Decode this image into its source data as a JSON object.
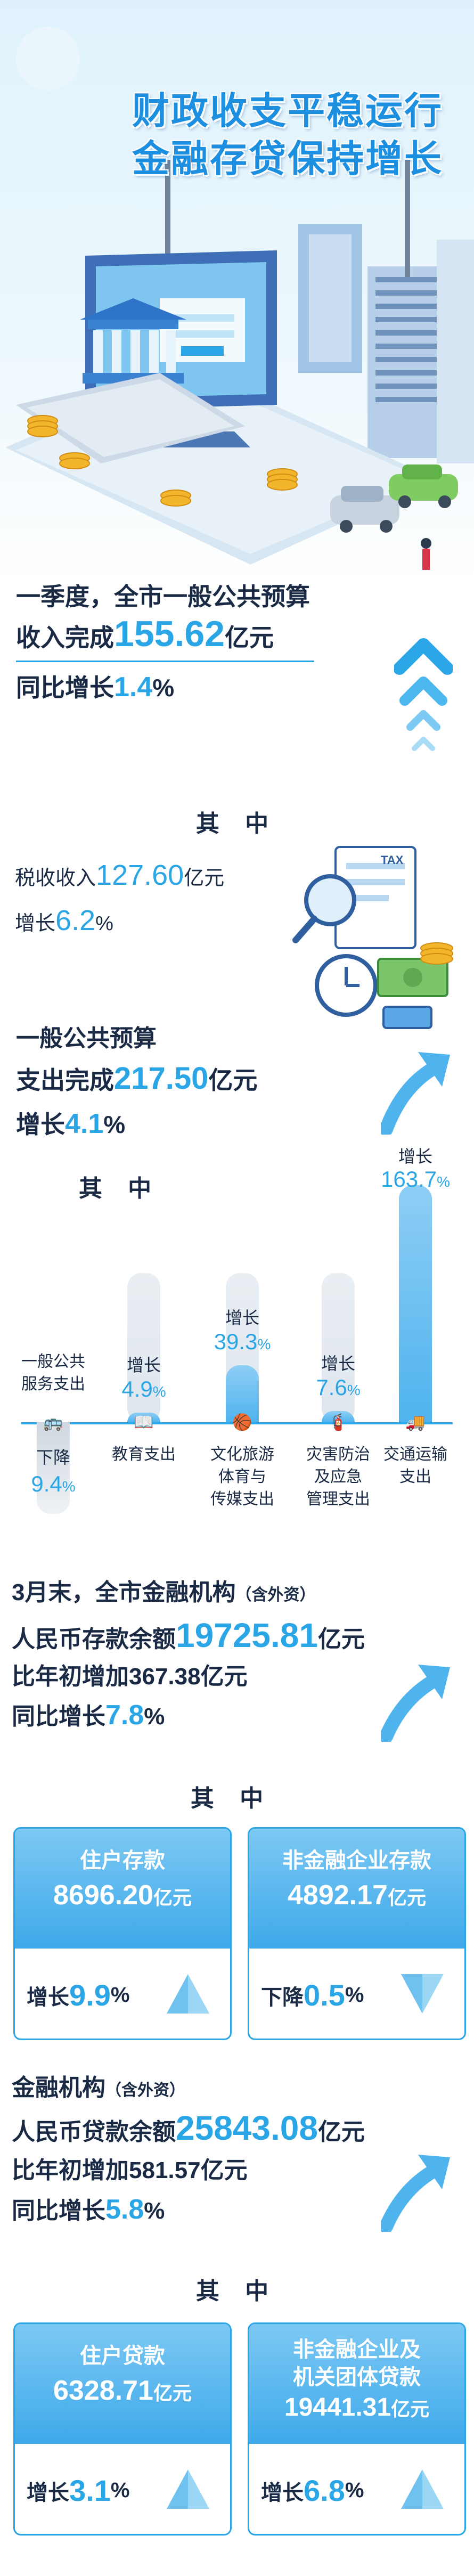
{
  "hero": {
    "title_line1": "财政收支平稳运行",
    "title_line2": "金融存贷保持增长",
    "illustration_sign": "TAX"
  },
  "revenue": {
    "line1": "一季度，全市一般公共预算",
    "line2_prefix": "收入完成",
    "line2_value": "155.62",
    "line2_unit": "亿元",
    "line3_prefix": "同比增长",
    "line3_value": "1.4",
    "line3_unit": "%"
  },
  "revenue_detail": {
    "heading": "其 中",
    "tax_prefix": "税收收入",
    "tax_value": "127.60",
    "tax_unit": "亿元",
    "growth_prefix": "增长",
    "growth_value": "6.2",
    "growth_unit": "%"
  },
  "expenditure": {
    "line1": "一般公共预算",
    "line2_prefix": "支出完成",
    "line2_value": "217.50",
    "line2_unit": "亿元",
    "line3_prefix": "增长",
    "line3_value": "4.1",
    "line3_unit": "%"
  },
  "chart_data": {
    "type": "bar",
    "title": "其 中",
    "categories": [
      "一般公共服务支出",
      "教育支出",
      "文化旅游体育与传媒支出",
      "灾害防治及应急管理支出",
      "交通运输支出"
    ],
    "category_labels": [
      [
        "一般公共",
        "服务支出"
      ],
      [
        "教育支出"
      ],
      [
        "文化旅游",
        "体育与",
        "传媒支出"
      ],
      [
        "灾害防治",
        "及应急",
        "管理支出"
      ],
      [
        "交通运输",
        "支出"
      ]
    ],
    "values": [
      -9.4,
      4.9,
      39.3,
      7.6,
      163.7
    ],
    "direction_labels": [
      "下降",
      "增长",
      "增长",
      "增长",
      "增长"
    ],
    "value_text": [
      "9.4",
      "4.9",
      "39.3",
      "7.6",
      "163.7"
    ],
    "unit": "%",
    "icons": [
      "bus-icon",
      "book-icon",
      "basketball-icon",
      "extinguisher-icon",
      "truck-icon"
    ]
  },
  "finance": {
    "line1": "3月末，全市金融机构",
    "line1_note": "（含外资）",
    "deposit_prefix": "人民币存款余额",
    "deposit_value": "19725.81",
    "deposit_unit": "亿元",
    "increase_line": "比年初增加367.38亿元",
    "growth_prefix": "同比增长",
    "growth_value": "7.8",
    "growth_unit": "%"
  },
  "deposit_boxes": {
    "heading": "其 中",
    "items": [
      {
        "title": "住户存款",
        "value": "8696.20",
        "unit": "亿元",
        "change_prefix": "增长",
        "change_value": "9.9",
        "change_unit": "%",
        "direction": "up"
      },
      {
        "title": "非金融企业存款",
        "value": "4892.17",
        "unit": "亿元",
        "change_prefix": "下降",
        "change_value": "0.5",
        "change_unit": "%",
        "direction": "down"
      }
    ]
  },
  "loans": {
    "line1": "金融机构",
    "line1_note": "（含外资）",
    "loan_prefix": "人民币贷款余额",
    "loan_value": "25843.08",
    "loan_unit": "亿元",
    "increase_line": "比年初增加581.57亿元",
    "growth_prefix": "同比增长",
    "growth_value": "5.8",
    "growth_unit": "%"
  },
  "loan_boxes": {
    "heading": "其 中",
    "items": [
      {
        "title": "住户贷款",
        "value": "6328.71",
        "unit": "亿元",
        "change_prefix": "增长",
        "change_value": "3.1",
        "change_unit": "%",
        "direction": "up"
      },
      {
        "title_line1": "非金融企业及",
        "title_line2": "机关团体贷款",
        "value": "19441.31",
        "unit": "亿元",
        "change_prefix": "增长",
        "change_value": "6.8",
        "change_unit": "%",
        "direction": "up"
      }
    ]
  },
  "colors": {
    "accent": "#2aa6e6",
    "text": "#1a2a45",
    "box_fill": "#4fb3ee"
  }
}
